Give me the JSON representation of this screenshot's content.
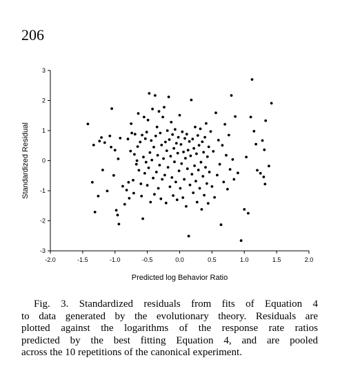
{
  "page": {
    "number": "206"
  },
  "caption": {
    "lines": [
      "Fig. 3.   Standardized residuals from fits of Equation 4",
      "to data generated by the evolutionary theory. Residuals are",
      "plotted against the logarithms of the response rate ratios",
      "predicted by the best fitting Equation 4, and are pooled",
      "across the 10 repetitions of the canonical experiment."
    ]
  },
  "chart_data": {
    "type": "scatter",
    "xlabel": "Predicted log Behavior Ratio",
    "ylabel": "Standardized Residual",
    "xlim": [
      -2.0,
      2.0
    ],
    "ylim": [
      -3,
      3
    ],
    "x_ticks": [
      -2.0,
      -1.5,
      -1.0,
      -0.5,
      0.0,
      0.5,
      1.0,
      1.5,
      2.0
    ],
    "x_tick_labels": [
      "-2.0",
      "-1.5",
      "-1.0",
      "-0.5",
      "0.0",
      "0.5",
      "1.0",
      "1.5",
      "2.0"
    ],
    "y_ticks": [
      -3,
      -2,
      -1,
      0,
      1,
      2,
      3
    ],
    "y_tick_labels": [
      "-3",
      "-2",
      "-1",
      "0",
      "1",
      "2",
      "3"
    ],
    "grid": false,
    "marker_color": "#000000",
    "points": [
      [
        -1.42,
        1.22
      ],
      [
        -1.35,
        -0.72
      ],
      [
        -1.33,
        0.52
      ],
      [
        -1.31,
        -1.71
      ],
      [
        -1.26,
        -1.18
      ],
      [
        -1.24,
        0.65
      ],
      [
        -1.21,
        0.77
      ],
      [
        -1.19,
        -0.31
      ],
      [
        -1.16,
        0.6
      ],
      [
        -1.12,
        -1.01
      ],
      [
        -1.08,
        0.82
      ],
      [
        -1.06,
        0.45
      ],
      [
        -1.05,
        1.73
      ],
      [
        -1.02,
        -0.49
      ],
      [
        -1.0,
        0.35
      ],
      [
        -0.98,
        -1.65
      ],
      [
        -0.96,
        -1.81
      ],
      [
        -0.95,
        0.06
      ],
      [
        -0.94,
        -2.11
      ],
      [
        -0.92,
        0.75
      ],
      [
        -0.88,
        -0.85
      ],
      [
        -0.85,
        -1.45
      ],
      [
        -0.82,
        -0.98
      ],
      [
        -0.8,
        0.72
      ],
      [
        -0.79,
        -0.72
      ],
      [
        -0.78,
        -1.25
      ],
      [
        -0.76,
        0.32
      ],
      [
        -0.75,
        1.23
      ],
      [
        -0.74,
        0.92
      ],
      [
        -0.72,
        -0.65
      ],
      [
        -0.71,
        -1.08
      ],
      [
        -0.7,
        0.21
      ],
      [
        -0.69,
        0.88
      ],
      [
        -0.67,
        -0.12
      ],
      [
        -0.66,
        0.0
      ],
      [
        -0.65,
        0.47
      ],
      [
        -0.64,
        1.57
      ],
      [
        -0.63,
        -0.32
      ],
      [
        -0.61,
        0.62
      ],
      [
        -0.6,
        -0.77
      ],
      [
        -0.59,
        -1.18
      ],
      [
        -0.58,
        0.85
      ],
      [
        -0.57,
        -1.93
      ],
      [
        -0.56,
        0.12
      ],
      [
        -0.55,
        1.45
      ],
      [
        -0.54,
        -0.42
      ],
      [
        -0.53,
        0.73
      ],
      [
        -0.52,
        -0.05
      ],
      [
        -0.51,
        0.95
      ],
      [
        -0.5,
        -0.82
      ],
      [
        -0.49,
        1.35
      ],
      [
        -0.48,
        -0.24
      ],
      [
        -0.47,
        2.24
      ],
      [
        -0.46,
        0.27
      ],
      [
        -0.45,
        -1.38
      ],
      [
        -0.44,
        0.67
      ],
      [
        -0.43,
        0.02
      ],
      [
        -0.42,
        1.72
      ],
      [
        -0.41,
        -0.58
      ],
      [
        -0.4,
        0.45
      ],
      [
        -0.39,
        -1.12
      ],
      [
        -0.38,
        2.17
      ],
      [
        -0.37,
        0.82
      ],
      [
        -0.36,
        -0.38
      ],
      [
        -0.35,
        1.12
      ],
      [
        -0.34,
        0.18
      ],
      [
        -0.33,
        -0.92
      ],
      [
        -0.32,
        1.64
      ],
      [
        -0.31,
        -0.15
      ],
      [
        -0.3,
        0.92
      ],
      [
        -0.29,
        -1.27
      ],
      [
        -0.28,
        0.52
      ],
      [
        -0.27,
        -0.62
      ],
      [
        -0.26,
        1.45
      ],
      [
        -0.25,
        0.07
      ],
      [
        -0.24,
        1.78
      ],
      [
        -0.23,
        -0.48
      ],
      [
        -0.22,
        0.62
      ],
      [
        -0.21,
        -1.41
      ],
      [
        -0.2,
        0.33
      ],
      [
        -0.19,
        1.0
      ],
      [
        -0.18,
        -0.22
      ],
      [
        -0.17,
        2.12
      ],
      [
        -0.16,
        0.7
      ],
      [
        -0.15,
        -0.87
      ],
      [
        -0.14,
        0.15
      ],
      [
        -0.13,
        1.28
      ],
      [
        -0.12,
        -0.56
      ],
      [
        -0.11,
        0.87
      ],
      [
        -0.1,
        -1.16
      ],
      [
        -0.09,
        0.41
      ],
      [
        -0.08,
        -0.04
      ],
      [
        -0.07,
        1.04
      ],
      [
        -0.06,
        -0.71
      ],
      [
        -0.05,
        0.58
      ],
      [
        -0.04,
        -1.3
      ],
      [
        -0.03,
        0.25
      ],
      [
        -0.02,
        0.78
      ],
      [
        -0.01,
        -0.34
      ],
      [
        0.0,
        1.51
      ],
      [
        0.01,
        -0.92
      ],
      [
        0.02,
        0.54
      ],
      [
        0.03,
        -0.1
      ],
      [
        0.04,
        0.96
      ],
      [
        0.05,
        -1.23
      ],
      [
        0.06,
        0.29
      ],
      [
        0.07,
        -0.62
      ],
      [
        0.08,
        0.74
      ],
      [
        0.09,
        0.08
      ],
      [
        0.1,
        -1.52
      ],
      [
        0.11,
        0.88
      ],
      [
        0.12,
        -0.27
      ],
      [
        0.13,
        0.35
      ],
      [
        0.14,
        -2.51
      ],
      [
        0.15,
        0.64
      ],
      [
        0.16,
        -0.81
      ],
      [
        0.17,
        0.16
      ],
      [
        0.18,
        2.02
      ],
      [
        0.19,
        -0.45
      ],
      [
        0.2,
        0.72
      ],
      [
        0.21,
        -1.07
      ],
      [
        0.22,
        0.41
      ],
      [
        0.23,
        -0.17
      ],
      [
        0.24,
        1.12
      ],
      [
        0.25,
        -0.68
      ],
      [
        0.26,
        0.23
      ],
      [
        0.27,
        -1.38
      ],
      [
        0.28,
        0.84
      ],
      [
        0.29,
        -0.31
      ],
      [
        0.3,
        0.51
      ],
      [
        0.31,
        -0.92
      ],
      [
        0.32,
        1.06
      ],
      [
        0.33,
        -0.05
      ],
      [
        0.34,
        -1.62
      ],
      [
        0.35,
        0.63
      ],
      [
        0.36,
        -0.52
      ],
      [
        0.37,
        0.28
      ],
      [
        0.38,
        -1.15
      ],
      [
        0.39,
        0.78
      ],
      [
        0.4,
        -0.22
      ],
      [
        0.41,
        1.24
      ],
      [
        0.42,
        -0.76
      ],
      [
        0.43,
        0.13
      ],
      [
        0.44,
        -1.42
      ],
      [
        0.45,
        0.46
      ],
      [
        0.46,
        -0.38
      ],
      [
        0.48,
        0.97
      ],
      [
        0.5,
        -0.86
      ],
      [
        0.52,
        0.31
      ],
      [
        0.54,
        -1.22
      ],
      [
        0.56,
        1.59
      ],
      [
        0.58,
        -0.48
      ],
      [
        0.6,
        0.68
      ],
      [
        0.62,
        -0.12
      ],
      [
        0.64,
        -2.13
      ],
      [
        0.66,
        0.51
      ],
      [
        0.68,
        -0.71
      ],
      [
        0.7,
        1.21
      ],
      [
        0.72,
        0.18
      ],
      [
        0.74,
        -0.95
      ],
      [
        0.76,
        0.85
      ],
      [
        0.78,
        -0.29
      ],
      [
        0.8,
        2.17
      ],
      [
        0.82,
        0.04
      ],
      [
        0.84,
        -0.62
      ],
      [
        0.86,
        1.47
      ],
      [
        0.9,
        -0.41
      ],
      [
        0.95,
        -2.66
      ],
      [
        1.0,
        -1.62
      ],
      [
        1.03,
        0.12
      ],
      [
        1.06,
        -1.75
      ],
      [
        1.1,
        1.45
      ],
      [
        1.12,
        2.7
      ],
      [
        1.15,
        0.98
      ],
      [
        1.18,
        0.55
      ],
      [
        1.2,
        -0.32
      ],
      [
        1.25,
        -0.42
      ],
      [
        1.28,
        0.67
      ],
      [
        1.3,
        -0.54
      ],
      [
        1.31,
        0.36
      ],
      [
        1.32,
        -0.78
      ],
      [
        1.33,
        1.33
      ],
      [
        1.38,
        -0.18
      ],
      [
        1.42,
        1.91
      ]
    ]
  }
}
